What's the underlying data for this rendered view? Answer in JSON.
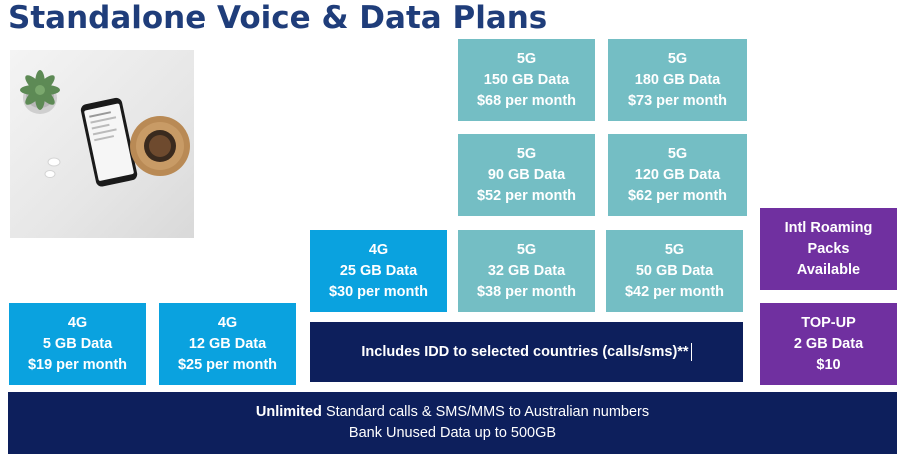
{
  "title": "Standalone Voice & Data Plans",
  "plans_4g": [
    {
      "tech": "4G",
      "data": "5 GB Data",
      "price": "$19 per month"
    },
    {
      "tech": "4G",
      "data": "12 GB Data",
      "price": "$25 per month"
    },
    {
      "tech": "4G",
      "data": "25 GB Data",
      "price": "$30 per month"
    }
  ],
  "plans_5g": [
    {
      "tech": "5G",
      "data": "32 GB Data",
      "price": "$38 per month"
    },
    {
      "tech": "5G",
      "data": "50 GB Data",
      "price": "$42 per month"
    },
    {
      "tech": "5G",
      "data": "90 GB Data",
      "price": "$52 per month"
    },
    {
      "tech": "5G",
      "data": "120 GB Data",
      "price": "$62 per month"
    },
    {
      "tech": "5G",
      "data": "150 GB Data",
      "price": "$68 per month"
    },
    {
      "tech": "5G",
      "data": "180 GB Data",
      "price": "$73 per month"
    }
  ],
  "roaming": {
    "line1": "Intl Roaming",
    "line2": "Packs",
    "line3": "Available"
  },
  "topup": {
    "line1": "TOP-UP",
    "line2": "2 GB Data",
    "line3": "$10"
  },
  "idd_text": "Includes IDD to selected countries (calls/sms)**",
  "bottom": {
    "bold": "Unlimited",
    "line1_rest": " Standard calls & SMS/MMS to Australian numbers",
    "line2": "Bank Unused Data up to 500GB"
  },
  "colors": {
    "blue": "#0aa2df",
    "teal": "#74bec4",
    "purple": "#7030a0",
    "navy": "#0d1f5c",
    "title": "#1f3d7a"
  }
}
